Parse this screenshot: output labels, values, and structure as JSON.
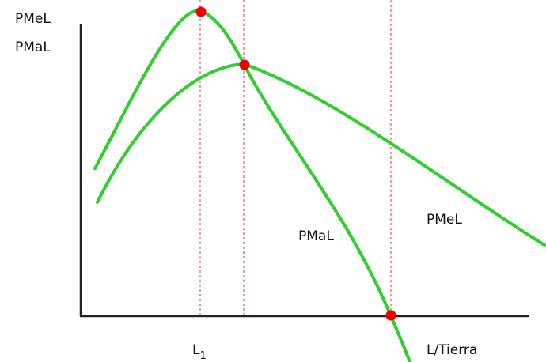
{
  "colors": {
    "curve": "#2fcf2f",
    "axis": "#222222",
    "guide": "#f07878",
    "point": "#ee0000",
    "text": "#111111"
  },
  "labels": {
    "y_axis_top": "PMeL",
    "y_axis_bottom": "PMaL",
    "pmal_curve": "PMaL",
    "pmel_curve": "PMeL",
    "x_axis": "L/Tierra",
    "l1_main": "L",
    "l1_sub": "1"
  },
  "curves": [
    {
      "name": "pmal-curve",
      "label": "PMaL"
    },
    {
      "name": "pmel-curve",
      "label": "PMeL"
    }
  ],
  "points": [
    {
      "name": "pmal-maximum-point"
    },
    {
      "name": "pmal-pmel-intersection-point"
    },
    {
      "name": "pmal-zero-crossing-point"
    }
  ]
}
